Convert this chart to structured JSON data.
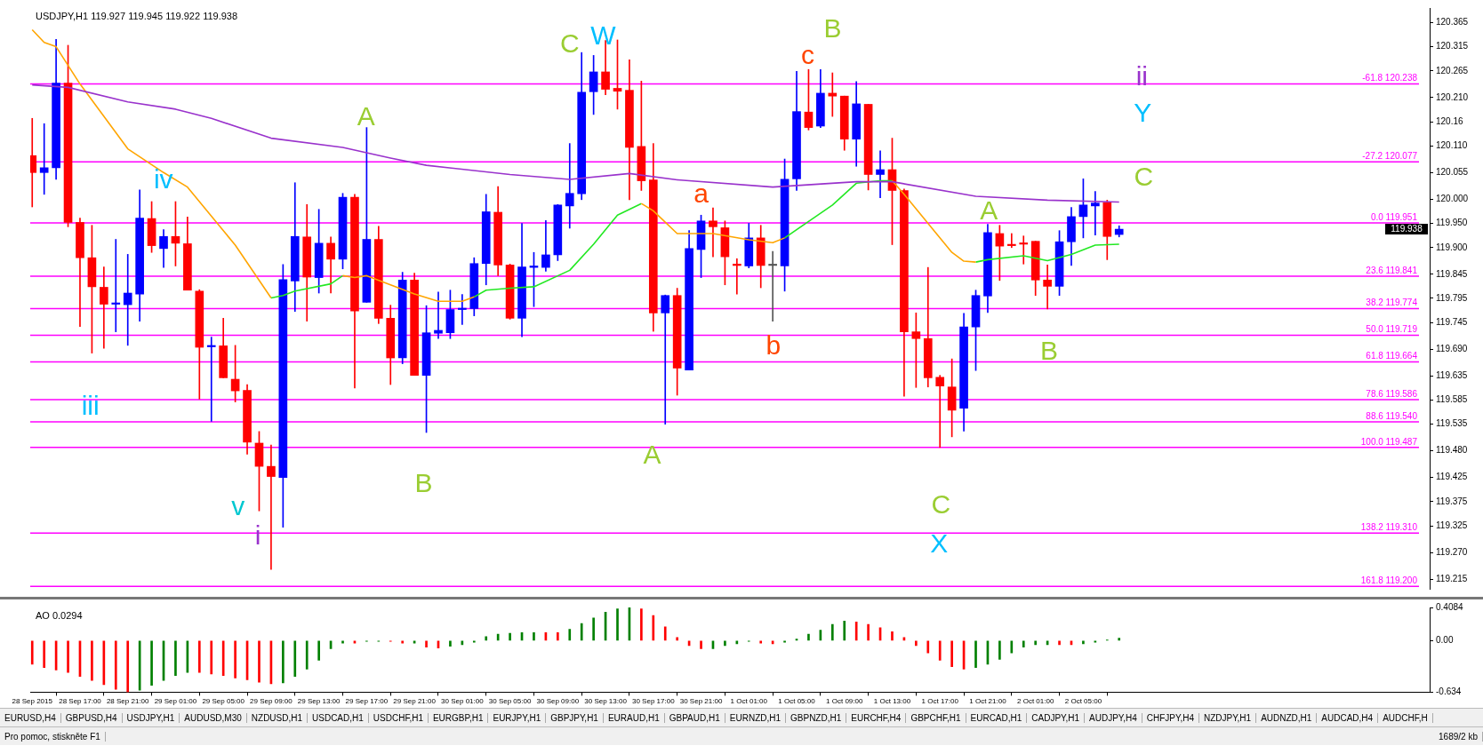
{
  "chart_data": [
    {
      "type": "candlestick",
      "title": "USDJPY,H1 119.927 119.945 119.922 119.938",
      "x": [
        "2015-09-28T13:00",
        "2015-09-28T14:00",
        "2015-09-28T15:00",
        "2015-09-28T16:00",
        "2015-09-28T17:00",
        "2015-09-28T18:00",
        "2015-09-28T19:00",
        "2015-09-28T20:00",
        "2015-09-28T21:00",
        "2015-09-28T22:00",
        "2015-09-28T23:00",
        "2015-09-29T00:00",
        "2015-09-29T01:00",
        "2015-09-29T02:00",
        "2015-09-29T03:00",
        "2015-09-29T04:00",
        "2015-09-29T05:00",
        "2015-09-29T06:00",
        "2015-09-29T07:00",
        "2015-09-29T08:00",
        "2015-09-29T09:00",
        "2015-09-29T10:00",
        "2015-09-29T11:00",
        "2015-09-29T12:00",
        "2015-09-29T13:00",
        "2015-09-29T14:00",
        "2015-09-29T15:00",
        "2015-09-29T16:00",
        "2015-09-29T17:00",
        "2015-09-29T18:00",
        "2015-09-29T19:00",
        "2015-09-29T20:00",
        "2015-09-29T21:00",
        "2015-09-29T22:00",
        "2015-09-29T23:00",
        "2015-09-30T00:00",
        "2015-09-30T01:00",
        "2015-09-30T02:00",
        "2015-09-30T03:00",
        "2015-09-30T04:00",
        "2015-09-30T05:00",
        "2015-09-30T06:00",
        "2015-09-30T07:00",
        "2015-09-30T08:00",
        "2015-09-30T09:00",
        "2015-09-30T10:00",
        "2015-09-30T11:00",
        "2015-09-30T12:00",
        "2015-09-30T13:00",
        "2015-09-30T14:00",
        "2015-09-30T15:00",
        "2015-09-30T16:00",
        "2015-09-30T17:00",
        "2015-09-30T18:00",
        "2015-09-30T19:00",
        "2015-09-30T20:00",
        "2015-09-30T21:00",
        "2015-09-30T22:00",
        "2015-09-30T23:00",
        "2015-10-01T00:00",
        "2015-10-01T01:00",
        "2015-10-01T02:00",
        "2015-10-01T03:00",
        "2015-10-01T04:00",
        "2015-10-01T05:00",
        "2015-10-01T06:00",
        "2015-10-01T07:00",
        "2015-10-01T08:00",
        "2015-10-01T09:00",
        "2015-10-01T10:00",
        "2015-10-01T11:00",
        "2015-10-01T12:00",
        "2015-10-01T13:00",
        "2015-10-01T14:00",
        "2015-10-01T15:00",
        "2015-10-01T16:00",
        "2015-10-01T17:00",
        "2015-10-01T18:00",
        "2015-10-01T19:00",
        "2015-10-01T20:00",
        "2015-10-01T21:00",
        "2015-10-01T22:00",
        "2015-10-01T23:00",
        "2015-10-02T00:00",
        "2015-10-02T01:00",
        "2015-10-02T02:00",
        "2015-10-02T03:00",
        "2015-10-02T04:00",
        "2015-10-02T05:00",
        "2015-10-02T06:00",
        "2015-10-02T07:00",
        "2015-10-02T08:00"
      ],
      "ohlc": [
        [
          120.09,
          120.167,
          119.984,
          120.055
        ],
        [
          120.055,
          120.156,
          120.01,
          120.065
        ],
        [
          120.065,
          120.33,
          120.041,
          120.24
        ],
        [
          120.24,
          120.318,
          119.943,
          119.952
        ],
        [
          119.952,
          119.961,
          119.737,
          119.879
        ],
        [
          119.879,
          119.946,
          119.682,
          119.819
        ],
        [
          119.818,
          119.86,
          119.692,
          119.783
        ],
        [
          119.783,
          119.917,
          119.726,
          119.784
        ],
        [
          119.782,
          119.886,
          119.698,
          119.806
        ],
        [
          119.804,
          120.019,
          119.748,
          119.961
        ],
        [
          119.96,
          119.995,
          119.89,
          119.904
        ],
        [
          119.898,
          119.937,
          119.859,
          119.923
        ],
        [
          119.923,
          119.995,
          119.862,
          119.909
        ],
        [
          119.908,
          119.963,
          119.812,
          119.812
        ],
        [
          119.81,
          119.813,
          119.587,
          119.694
        ],
        [
          119.695,
          119.715,
          119.541,
          119.696
        ],
        [
          119.697,
          119.754,
          119.631,
          119.631
        ],
        [
          119.628,
          119.698,
          119.581,
          119.604
        ],
        [
          119.605,
          119.617,
          119.473,
          119.498
        ],
        [
          119.496,
          119.52,
          119.356,
          119.448
        ],
        [
          119.448,
          119.492,
          119.235,
          119.427
        ],
        [
          119.425,
          119.865,
          119.322,
          119.834
        ],
        [
          119.831,
          120.034,
          119.768,
          119.923
        ],
        [
          119.922,
          119.989,
          119.748,
          119.839
        ],
        [
          119.838,
          119.979,
          119.806,
          119.909
        ],
        [
          119.909,
          119.922,
          119.806,
          119.876
        ],
        [
          119.876,
          120.012,
          119.856,
          120.004
        ],
        [
          120.004,
          120.01,
          119.61,
          119.769
        ],
        [
          119.787,
          120.148,
          119.787,
          119.917
        ],
        [
          119.917,
          119.944,
          119.743,
          119.754
        ],
        [
          119.754,
          119.781,
          119.617,
          119.672
        ],
        [
          119.672,
          119.849,
          119.66,
          119.833
        ],
        [
          119.833,
          119.847,
          119.636,
          119.636
        ],
        [
          119.636,
          119.78,
          119.518,
          119.724
        ],
        [
          119.723,
          119.808,
          119.712,
          119.729
        ],
        [
          119.724,
          119.812,
          119.712,
          119.772
        ],
        [
          119.772,
          119.803,
          119.741,
          119.774
        ],
        [
          119.774,
          119.879,
          119.759,
          119.867
        ],
        [
          119.867,
          120.01,
          119.823,
          119.974
        ],
        [
          119.973,
          120.026,
          119.842,
          119.864
        ],
        [
          119.864,
          119.866,
          119.752,
          119.754
        ],
        [
          119.754,
          119.95,
          119.716,
          119.86
        ],
        [
          119.859,
          119.89,
          119.778,
          119.862
        ],
        [
          119.859,
          119.956,
          119.851,
          119.885
        ],
        [
          119.885,
          119.989,
          119.873,
          119.988
        ],
        [
          119.986,
          120.115,
          119.94,
          120.012
        ],
        [
          120.011,
          120.303,
          119.999,
          120.221
        ],
        [
          120.222,
          120.297,
          120.175,
          120.263
        ],
        [
          120.263,
          120.328,
          120.216,
          120.227
        ],
        [
          120.229,
          120.329,
          120.186,
          120.223
        ],
        [
          120.225,
          120.288,
          119.999,
          120.107
        ],
        [
          120.109,
          120.244,
          120.018,
          120.038
        ],
        [
          120.04,
          120.115,
          119.727,
          119.765
        ],
        [
          119.765,
          119.802,
          119.535,
          119.801
        ],
        [
          119.801,
          119.816,
          119.595,
          119.651
        ],
        [
          119.647,
          119.935,
          119.647,
          119.898
        ],
        [
          119.896,
          119.967,
          119.838,
          119.955
        ],
        [
          119.955,
          119.982,
          119.881,
          119.943
        ],
        [
          119.941,
          119.955,
          119.823,
          119.881
        ],
        [
          119.866,
          119.877,
          119.804,
          119.863
        ],
        [
          119.862,
          119.95,
          119.858,
          119.92
        ],
        [
          119.92,
          119.946,
          119.817,
          119.863
        ],
        [
          119.863,
          119.892,
          119.748,
          119.863
        ],
        [
          119.862,
          120.083,
          119.81,
          120.041
        ],
        [
          120.042,
          120.264,
          120.018,
          120.181
        ],
        [
          120.18,
          120.268,
          120.143,
          120.148
        ],
        [
          120.151,
          120.268,
          120.148,
          120.219
        ],
        [
          120.219,
          120.261,
          120.171,
          120.213
        ],
        [
          120.213,
          120.213,
          120.101,
          120.124
        ],
        [
          120.124,
          120.243,
          120.068,
          120.197
        ],
        [
          120.196,
          120.196,
          120.019,
          120.051
        ],
        [
          120.051,
          120.1,
          120.003,
          120.061
        ],
        [
          120.061,
          120.126,
          119.906,
          120.018
        ],
        [
          120.018,
          120.021,
          119.593,
          119.726
        ],
        [
          119.726,
          119.765,
          119.611,
          119.712
        ],
        [
          119.712,
          119.859,
          119.612,
          119.631
        ],
        [
          119.632,
          119.636,
          119.487,
          119.614
        ],
        [
          119.612,
          119.67,
          119.509,
          119.564
        ],
        [
          119.568,
          119.764,
          119.521,
          119.736
        ],
        [
          119.736,
          119.812,
          119.646,
          119.801
        ],
        [
          119.8,
          119.948,
          119.766,
          119.931
        ],
        [
          119.929,
          119.946,
          119.832,
          119.903
        ],
        [
          119.906,
          119.929,
          119.9,
          119.904
        ],
        [
          119.909,
          119.924,
          119.866,
          119.907
        ],
        [
          119.913,
          119.913,
          119.801,
          119.833
        ],
        [
          119.833,
          119.864,
          119.773,
          119.82
        ],
        [
          119.82,
          119.935,
          119.801,
          119.912
        ],
        [
          119.912,
          119.983,
          119.863,
          119.964
        ],
        [
          119.964,
          120.042,
          119.92,
          119.988
        ],
        [
          119.986,
          120.016,
          119.926,
          119.992
        ],
        [
          119.993,
          119.998,
          119.875,
          119.923
        ],
        [
          119.927,
          119.945,
          119.922,
          119.938
        ]
      ],
      "colors": [
        "#ff0000",
        "#0000ff",
        "#0000ff",
        "#ff0000",
        "#ff0000",
        "#ff0000",
        "#ff0000",
        "#0000ff",
        "#0000ff",
        "#0000ff",
        "#ff0000",
        "#0000ff",
        "#ff0000",
        "#ff0000",
        "#ff0000",
        "#0000ff",
        "#ff0000",
        "#ff0000",
        "#ff0000",
        "#ff0000",
        "#ff0000",
        "#0000ff",
        "#0000ff",
        "#ff0000",
        "#0000ff",
        "#ff0000",
        "#0000ff",
        "#ff0000",
        "#0000ff",
        "#ff0000",
        "#ff0000",
        "#0000ff",
        "#ff0000",
        "#0000ff",
        "#0000ff",
        "#0000ff",
        "#0000ff",
        "#0000ff",
        "#0000ff",
        "#ff0000",
        "#ff0000",
        "#0000ff",
        "#0000ff",
        "#0000ff",
        "#0000ff",
        "#0000ff",
        "#0000ff",
        "#0000ff",
        "#ff0000",
        "#ff0000",
        "#ff0000",
        "#ff0000",
        "#ff0000",
        "#0000ff",
        "#ff0000",
        "#0000ff",
        "#0000ff",
        "#ff0000",
        "#ff0000",
        "#ff0000",
        "#0000ff",
        "#ff0000",
        "#555555",
        "#0000ff",
        "#0000ff",
        "#ff0000",
        "#0000ff",
        "#ff0000",
        "#ff0000",
        "#0000ff",
        "#ff0000",
        "#0000ff",
        "#ff0000",
        "#ff0000",
        "#ff0000",
        "#ff0000",
        "#ff0000",
        "#ff0000",
        "#0000ff",
        "#0000ff",
        "#0000ff",
        "#ff0000",
        "#ff0000",
        "#ff0000",
        "#ff0000",
        "#ff0000",
        "#0000ff",
        "#0000ff",
        "#0000ff",
        "#0000ff",
        "#ff0000",
        "#0000ff"
      ],
      "series": [
        {
          "type": "line",
          "color": "#9932cc",
          "x": [
            "2015-09-28T13:00",
            "2015-09-28T16:00",
            "2015-09-28T21:00",
            "2015-09-29T01:00",
            "2015-09-29T04:00",
            "2015-09-29T09:00",
            "2015-09-29T15:00",
            "2015-09-29T19:00",
            "2015-09-29T22:00",
            "2015-09-30T05:00",
            "2015-09-30T10:00",
            "2015-09-30T15:00",
            "2015-09-30T19:00",
            "2015-10-01T03:00",
            "2015-10-01T10:00",
            "2015-10-01T13:00",
            "2015-10-01T20:00",
            "2015-10-02T02:00",
            "2015-10-02T08:00"
          ],
          "values": [
            120.236,
            120.231,
            120.201,
            120.186,
            120.167,
            120.126,
            120.107,
            120.085,
            120.07,
            120.051,
            120.041,
            120.053,
            120.04,
            120.025,
            120.036,
            120.036,
            120.006,
            119.998,
            119.994
          ]
        },
        {
          "type": "line",
          "color": "#ffa500",
          "x": [
            "2015-09-28T13:00",
            "2015-09-28T14:00",
            "2015-09-28T15:00",
            "2015-09-28T17:00",
            "2015-09-28T21:00",
            "2015-09-29T00:00",
            "2015-09-29T02:00",
            "2015-09-29T06:00",
            "2015-09-29T09:00",
            "2015-09-29T12:00",
            "2015-09-29T15:00",
            "2015-09-29T16:00",
            "2015-09-29T17:00",
            "2015-09-29T19:00",
            "2015-09-29T21:00",
            "2015-09-29T23:00",
            "2015-09-30T01:00",
            "2015-09-30T02:00",
            "2015-09-30T09:00",
            "2015-09-30T16:00",
            "2015-09-30T17:00",
            "2015-09-30T19:00",
            "2015-09-30T22:00",
            "2015-10-01T01:00",
            "2015-10-01T03:00",
            "2015-10-01T04:00",
            "2015-10-01T09:00",
            "2015-10-01T13:00",
            "2015-10-01T14:00",
            "2015-10-01T16:00",
            "2015-10-01T18:00",
            "2015-10-01T19:00",
            "2015-10-01T20:00"
          ],
          "values": [
            120.35,
            120.324,
            120.315,
            120.238,
            120.104,
            120.055,
            120.025,
            119.905,
            119.796,
            null,
            119.842,
            119.838,
            119.842,
            119.823,
            119.804,
            119.789,
            119.789,
            119.798,
            null,
            119.991,
            119.976,
            119.929,
            119.929,
            119.916,
            119.91,
            119.92,
            null,
            120.038,
            120.01,
            119.95,
            119.89,
            119.872,
            119.87
          ]
        },
        {
          "type": "line",
          "color": "#22e822",
          "x": [
            "2015-09-29T09:00",
            "2015-09-29T10:00",
            "2015-09-29T11:00",
            "2015-09-29T14:00",
            "2015-09-29T15:00",
            "2015-09-29T20:00",
            "2015-09-30T02:00",
            "2015-09-30T03:00",
            "2015-09-30T05:00",
            "2015-09-30T07:00",
            "2015-09-30T10:00",
            "2015-09-30T12:00",
            "2015-09-30T14:00",
            "2015-09-30T16:00",
            "2015-09-30T22:00",
            "2015-10-01T04:00",
            "2015-10-01T06:00",
            "2015-10-01T08:00",
            "2015-10-01T10:00",
            "2015-10-01T12:00",
            "2015-10-01T13:00",
            "2015-10-01T16:00",
            "2015-10-01T20:00",
            "2015-10-01T21:00",
            "2015-10-02T00:00",
            "2015-10-02T02:00",
            "2015-10-02T04:00",
            "2015-10-02T06:00",
            "2015-10-02T08:00"
          ],
          "values": [
            119.796,
            119.801,
            119.81,
            119.825,
            119.842,
            null,
            119.798,
            119.812,
            119.816,
            119.819,
            119.853,
            119.907,
            119.967,
            119.991,
            null,
            119.92,
            119.954,
            119.988,
            120.033,
            120.038,
            120.038,
            null,
            119.87,
            119.875,
            119.883,
            119.873,
            119.886,
            119.905,
            119.907
          ]
        }
      ],
      "ref_lines": [
        {
          "axis": "y",
          "value": 120.238,
          "label": "-61.8 120.238",
          "color": "#ff00ff"
        },
        {
          "axis": "y",
          "value": 120.077,
          "label": "-27.2 120.077",
          "color": "#ff00ff"
        },
        {
          "axis": "y",
          "value": 119.951,
          "label": "0.0 119.951",
          "color": "#ff00ff"
        },
        {
          "axis": "y",
          "value": 119.841,
          "label": "23.6 119.841",
          "color": "#ff00ff"
        },
        {
          "axis": "y",
          "value": 119.774,
          "label": "38.2 119.774",
          "color": "#ff00ff"
        },
        {
          "axis": "y",
          "value": 119.719,
          "label": "50.0 119.719",
          "color": "#ff00ff"
        },
        {
          "axis": "y",
          "value": 119.664,
          "label": "61.8 119.664",
          "color": "#ff00ff"
        },
        {
          "axis": "y",
          "value": 119.586,
          "label": "78.6 119.586",
          "color": "#ff00ff"
        },
        {
          "axis": "y",
          "value": 119.54,
          "label": "88.6 119.540",
          "color": "#ff00ff"
        },
        {
          "axis": "y",
          "value": 119.487,
          "label": "100.0 119.487",
          "color": "#ff00ff"
        },
        {
          "axis": "y",
          "value": 119.31,
          "label": "138.2 119.310",
          "color": "#ff00ff"
        },
        {
          "axis": "y",
          "value": 119.2,
          "label": "161.8 119.200",
          "color": "#ff00ff"
        }
      ],
      "annotations": [
        "iii",
        "iv",
        "v",
        "i",
        "A",
        "B",
        "C",
        "W",
        "A",
        "a",
        "b",
        "c",
        "B",
        "C",
        "X",
        "A",
        "B",
        "ii",
        "Y",
        "C",
        "119.938",
        "Pro pomoc, stiskněte F1",
        "1689/2 kb"
      ],
      "xlim": [
        "2015-09-28T12:50",
        "2015-10-03T10:00"
      ],
      "ylim": [
        119.195,
        120.395
      ],
      "yticks": [
        120.365,
        120.315,
        120.265,
        {
          "value": 120.21,
          "label": "120.210"
        },
        120.16,
        {
          "value": 120.11,
          "label": "120.110"
        },
        120.055,
        {
          "value": 120,
          "label": "120.000"
        },
        {
          "value": 119.95,
          "label": "119.950"
        },
        {
          "value": 119.9,
          "label": "119.900"
        },
        119.845,
        119.795,
        119.745,
        {
          "value": 119.69,
          "label": "119.690"
        },
        119.635,
        119.585,
        119.535,
        {
          "value": 119.48,
          "label": "119.480"
        },
        119.425,
        119.375,
        119.325,
        {
          "value": 119.27,
          "label": "119.270"
        },
        119.215
      ],
      "tick_labels": "y",
      "grid": false,
      "legend": false
    },
    {
      "type": "bar",
      "title": "AO 0.0294",
      "x": [
        "2015-09-28T13:00",
        "2015-09-28T14:00",
        "2015-09-28T15:00",
        "2015-09-28T16:00",
        "2015-09-28T17:00",
        "2015-09-28T18:00",
        "2015-09-28T19:00",
        "2015-09-28T20:00",
        "2015-09-28T21:00",
        "2015-09-28T22:00",
        "2015-09-28T23:00",
        "2015-09-29T00:00",
        "2015-09-29T01:00",
        "2015-09-29T02:00",
        "2015-09-29T03:00",
        "2015-09-29T04:00",
        "2015-09-29T05:00",
        "2015-09-29T06:00",
        "2015-09-29T07:00",
        "2015-09-29T08:00",
        "2015-09-29T09:00",
        "2015-09-29T10:00",
        "2015-09-29T11:00",
        "2015-09-29T12:00",
        "2015-09-29T13:00",
        "2015-09-29T14:00",
        "2015-09-29T15:00",
        "2015-09-29T16:00",
        "2015-09-29T17:00",
        "2015-09-29T18:00",
        "2015-09-29T19:00",
        "2015-09-29T20:00",
        "2015-09-29T21:00",
        "2015-09-29T22:00",
        "2015-09-29T23:00",
        "2015-09-30T00:00",
        "2015-09-30T01:00",
        "2015-09-30T02:00",
        "2015-09-30T03:00",
        "2015-09-30T04:00",
        "2015-09-30T05:00",
        "2015-09-30T06:00",
        "2015-09-30T07:00",
        "2015-09-30T08:00",
        "2015-09-30T09:00",
        "2015-09-30T10:00",
        "2015-09-30T11:00",
        "2015-09-30T12:00",
        "2015-09-30T13:00",
        "2015-09-30T14:00",
        "2015-09-30T15:00",
        "2015-09-30T16:00",
        "2015-09-30T17:00",
        "2015-09-30T18:00",
        "2015-09-30T19:00",
        "2015-09-30T20:00",
        "2015-09-30T21:00",
        "2015-09-30T22:00",
        "2015-09-30T23:00",
        "2015-10-01T00:00",
        "2015-10-01T01:00",
        "2015-10-01T02:00",
        "2015-10-01T03:00",
        "2015-10-01T04:00",
        "2015-10-01T05:00",
        "2015-10-01T06:00",
        "2015-10-01T07:00",
        "2015-10-01T08:00",
        "2015-10-01T09:00",
        "2015-10-01T10:00",
        "2015-10-01T11:00",
        "2015-10-01T12:00",
        "2015-10-01T13:00",
        "2015-10-01T14:00",
        "2015-10-01T15:00",
        "2015-10-01T16:00",
        "2015-10-01T17:00",
        "2015-10-01T18:00",
        "2015-10-01T19:00",
        "2015-10-01T20:00",
        "2015-10-01T21:00",
        "2015-10-01T22:00",
        "2015-10-01T23:00",
        "2015-10-02T00:00",
        "2015-10-02T01:00",
        "2015-10-02T02:00",
        "2015-10-02T03:00",
        "2015-10-02T04:00",
        "2015-10-02T05:00",
        "2015-10-02T06:00",
        "2015-10-02T07:00",
        "2015-10-02T08:00"
      ],
      "values": [
        -0.29,
        -0.33,
        -0.36,
        -0.39,
        -0.44,
        -0.49,
        -0.54,
        -0.6,
        -0.634,
        -0.61,
        -0.55,
        -0.49,
        -0.43,
        -0.39,
        -0.39,
        -0.41,
        -0.43,
        -0.46,
        -0.48,
        -0.51,
        -0.53,
        -0.52,
        -0.44,
        -0.35,
        -0.24,
        -0.1,
        -0.03,
        -0.03,
        -0.01,
        -0.01,
        -0.01,
        -0.03,
        -0.03,
        -0.08,
        -0.09,
        -0.07,
        -0.05,
        -0.02,
        0.05,
        0.08,
        0.09,
        0.1,
        0.1,
        0.1,
        0.1,
        0.14,
        0.21,
        0.28,
        0.35,
        0.39,
        0.4084,
        0.39,
        0.31,
        0.17,
        0.04,
        -0.06,
        -0.1,
        -0.1,
        -0.06,
        -0.04,
        -0.01,
        -0.03,
        -0.04,
        -0.02,
        0.02,
        0.08,
        0.13,
        0.2,
        0.24,
        0.23,
        0.2,
        0.16,
        0.11,
        0.04,
        -0.06,
        -0.15,
        -0.24,
        -0.32,
        -0.35,
        -0.33,
        -0.29,
        -0.23,
        -0.15,
        -0.08,
        -0.05,
        -0.05,
        -0.05,
        -0.05,
        -0.04,
        -0.02,
        0.01,
        0.0294
      ],
      "colors": [
        "#ff0000",
        "#ff0000",
        "#ff0000",
        "#ff0000",
        "#ff0000",
        "#ff0000",
        "#ff0000",
        "#ff0000",
        "#ff0000",
        "#008000",
        "#008000",
        "#008000",
        "#008000",
        "#008000",
        "#ff0000",
        "#ff0000",
        "#ff0000",
        "#ff0000",
        "#ff0000",
        "#ff0000",
        "#ff0000",
        "#008000",
        "#008000",
        "#008000",
        "#008000",
        "#008000",
        "#008000",
        "#ff0000",
        "#008000",
        "#008000",
        "#ff0000",
        "#ff0000",
        "#008000",
        "#ff0000",
        "#ff0000",
        "#008000",
        "#008000",
        "#008000",
        "#008000",
        "#008000",
        "#008000",
        "#008000",
        "#008000",
        "#ff0000",
        "#ff0000",
        "#008000",
        "#008000",
        "#008000",
        "#008000",
        "#008000",
        "#008000",
        "#ff0000",
        "#ff0000",
        "#ff0000",
        "#ff0000",
        "#ff0000",
        "#ff0000",
        "#008000",
        "#008000",
        "#008000",
        "#008000",
        "#ff0000",
        "#ff0000",
        "#008000",
        "#008000",
        "#008000",
        "#008000",
        "#008000",
        "#008000",
        "#ff0000",
        "#ff0000",
        "#ff0000",
        "#ff0000",
        "#ff0000",
        "#ff0000",
        "#ff0000",
        "#ff0000",
        "#ff0000",
        "#ff0000",
        "#008000",
        "#008000",
        "#008000",
        "#008000",
        "#008000",
        "#008000",
        "#008000",
        "#ff0000",
        "#ff0000",
        "#008000",
        "#008000",
        "#008000",
        "#008000"
      ],
      "annotations": [
        "EURUSD,H4",
        "GBPUSD,H4",
        "USDJPY,H1",
        "AUDUSD,M30",
        "NZDUSD,H1",
        "USDCAD,H1",
        "USDCHF,H1",
        "EURGBP,H1",
        "EURJPY,H1",
        "GBPJPY,H1",
        "EURAUD,H1",
        "GBPAUD,H1",
        "EURNZD,H1",
        "GBPNZD,H1",
        "EURCHF,H4",
        "GBPCHF,H1",
        "EURCAD,H1",
        "CADJPY,H1",
        "AUDJPY,H4",
        "CHFJPY,H4",
        "NZDJPY,H1",
        "AUDNZD,H1",
        "AUDCAD,H4",
        "AUDCHF,H"
      ],
      "xlim": [
        "2015-09-28T12:50",
        "2015-10-03T10:00"
      ],
      "xticks": [
        {
          "value": "2015-09-28T13:00",
          "label": "28 Sep 2015"
        },
        {
          "value": "2015-09-28T17:00",
          "label": "28 Sep 17:00"
        },
        {
          "value": "2015-09-28T21:00",
          "label": "28 Sep 21:00"
        },
        {
          "value": "2015-09-29T01:00",
          "label": "29 Sep 01:00"
        },
        {
          "value": "2015-09-29T05:00",
          "label": "29 Sep 05:00"
        },
        {
          "value": "2015-09-29T09:00",
          "label": "29 Sep 09:00"
        },
        {
          "value": "2015-09-29T13:00",
          "label": "29 Sep 13:00"
        },
        {
          "value": "2015-09-29T17:00",
          "label": "29 Sep 17:00"
        },
        {
          "value": "2015-09-29T21:00",
          "label": "29 Sep 21:00"
        },
        {
          "value": "2015-09-30T01:00",
          "label": "30 Sep 01:00"
        },
        {
          "value": "2015-09-30T05:00",
          "label": "30 Sep 05:00"
        },
        {
          "value": "2015-09-30T09:00",
          "label": "30 Sep 09:00"
        },
        {
          "value": "2015-09-30T13:00",
          "label": "30 Sep 13:00"
        },
        {
          "value": "2015-09-30T17:00",
          "label": "30 Sep 17:00"
        },
        {
          "value": "2015-09-30T21:00",
          "label": "30 Sep 21:00"
        },
        {
          "value": "2015-10-01T01:00",
          "label": "1 Oct 01:00"
        },
        {
          "value": "2015-10-01T05:00",
          "label": "1 Oct 05:00"
        },
        {
          "value": "2015-10-01T09:00",
          "label": "1 Oct 09:00"
        },
        {
          "value": "2015-10-01T13:00",
          "label": "1 Oct 13:00"
        },
        {
          "value": "2015-10-01T17:00",
          "label": "1 Oct 17:00"
        },
        {
          "value": "2015-10-01T21:00",
          "label": "1 Oct 21:00"
        },
        {
          "value": "2015-10-02T01:00",
          "label": "2 Oct 01:00"
        },
        {
          "value": "2015-10-02T05:00",
          "label": "2 Oct 05:00"
        }
      ],
      "ylim": [
        -0.634,
        0.4084
      ],
      "yticks": [
        0.4084,
        {
          "value": 0,
          "label": "0.00"
        },
        -0.634
      ],
      "grid": false,
      "legend": false
    }
  ]
}
